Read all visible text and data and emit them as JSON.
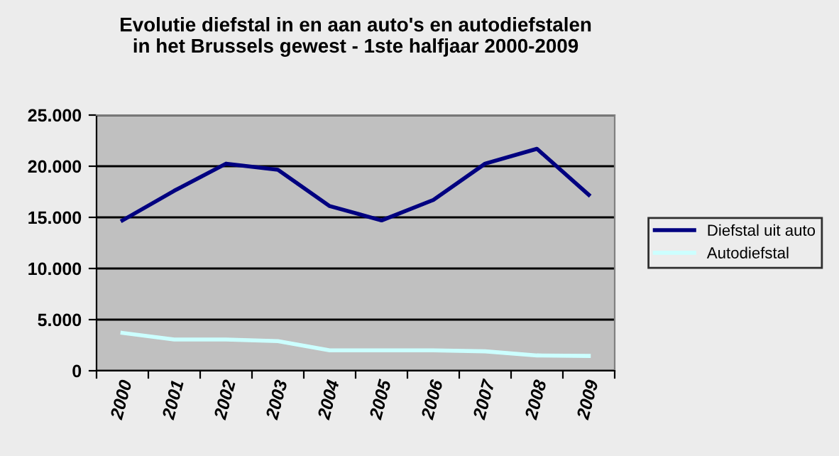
{
  "chart_data": {
    "type": "line",
    "title": "Evolutie diefstal in en aan auto's en autodiefstalen\nin het Brussels gewest - 1ste halfjaar 2000-2009",
    "categories": [
      "2000",
      "2001",
      "2002",
      "2003",
      "2004",
      "2005",
      "2006",
      "2007",
      "2008",
      "2009"
    ],
    "series": [
      {
        "name": "Diefstal uit auto",
        "color": "#000080",
        "values": [
          14700,
          17600,
          20250,
          19650,
          16100,
          14700,
          16700,
          20250,
          21700,
          17200
        ]
      },
      {
        "name": "Autodiefstal",
        "color": "#ccffff",
        "values": [
          3700,
          3050,
          3050,
          2900,
          2000,
          2000,
          2000,
          1900,
          1500,
          1450
        ]
      }
    ],
    "ylim": [
      0,
      25000
    ],
    "yticks": [
      {
        "value": 0,
        "label": "0"
      },
      {
        "value": 5000,
        "label": "5.000"
      },
      {
        "value": 10000,
        "label": "10.000"
      },
      {
        "value": 15000,
        "label": "15.000"
      },
      {
        "value": 20000,
        "label": "20.000"
      },
      {
        "value": 25000,
        "label": "25.000"
      }
    ],
    "grid": "y",
    "legend": "right",
    "marker": "none",
    "line_style": "solid"
  }
}
